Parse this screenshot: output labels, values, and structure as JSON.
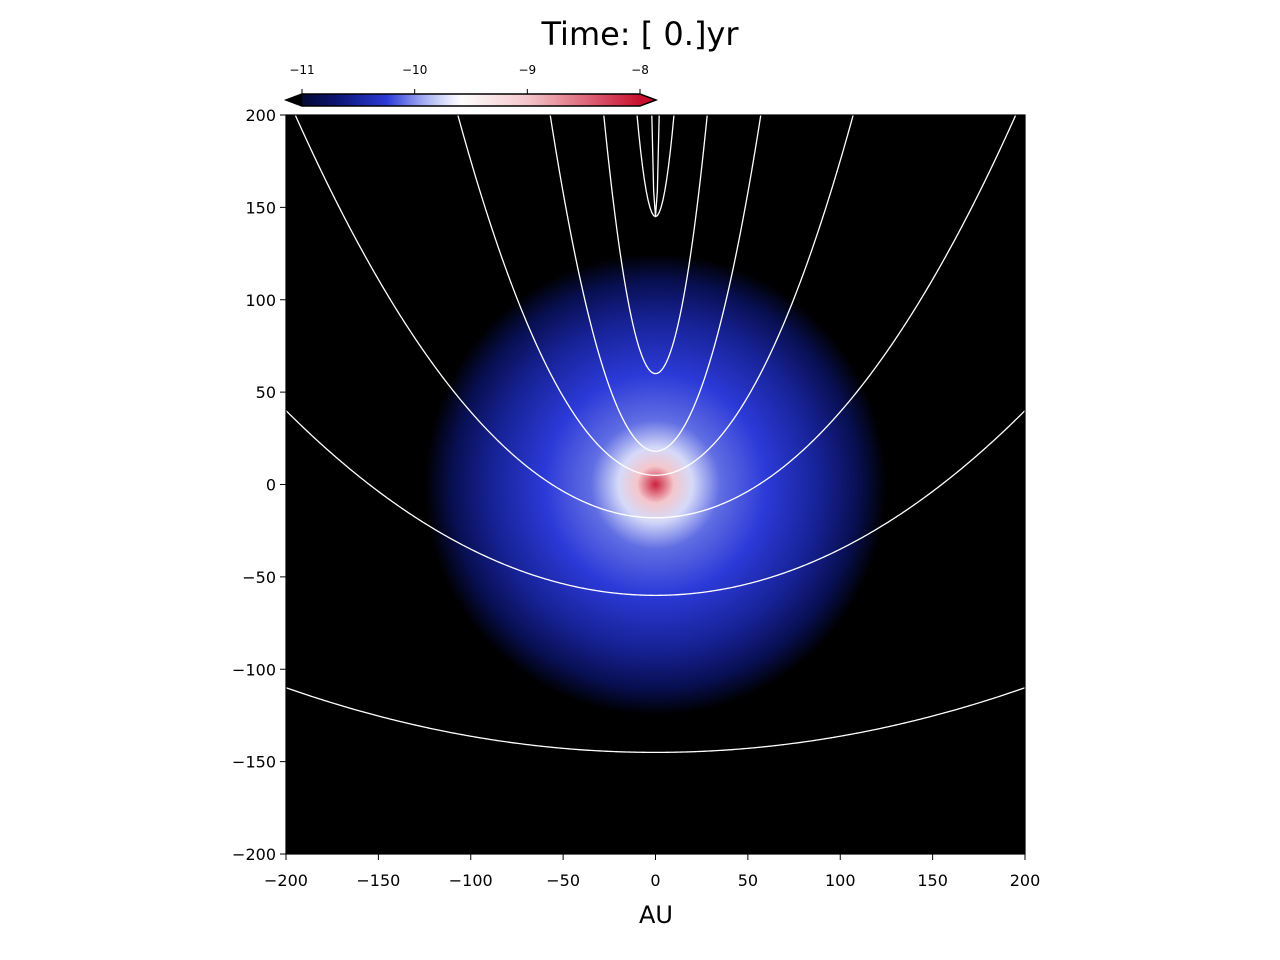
{
  "chart_data": {
    "type": "heatmap",
    "title": "Time: [ 0.]yr",
    "xlabel": "AU",
    "ylabel": "",
    "xlim": [
      -200,
      200
    ],
    "ylim": [
      -200,
      200
    ],
    "x_ticks": [
      -200,
      -150,
      -100,
      -50,
      0,
      50,
      100,
      150,
      200
    ],
    "y_ticks": [
      -200,
      -150,
      -100,
      -50,
      0,
      50,
      100,
      150,
      200
    ],
    "x_tick_labels": [
      "−200",
      "−150",
      "−100",
      "−50",
      "0",
      "50",
      "100",
      "150",
      "200"
    ],
    "y_tick_labels": [
      "−200",
      "−150",
      "−100",
      "−50",
      "0",
      "50",
      "100",
      "150",
      "200"
    ],
    "grid": false,
    "background_color": "#000000",
    "colorbar": {
      "placement": "top-left",
      "orientation": "horizontal",
      "range": [
        -11.25,
        -7.9
      ],
      "ticks": [
        -11,
        -10,
        -9,
        -8
      ],
      "tick_labels": [
        "−11",
        "−10",
        "−9",
        "−8"
      ],
      "extend": "both",
      "colormap_stops": [
        {
          "value": -11.25,
          "color": "#000000"
        },
        {
          "value": -10.7,
          "color": "#0b1570"
        },
        {
          "value": -10.25,
          "color": "#2b3ad8"
        },
        {
          "value": -9.9,
          "color": "#aab4f2"
        },
        {
          "value": -9.6,
          "color": "#ffffff"
        },
        {
          "value": -9.0,
          "color": "#f4c6cb"
        },
        {
          "value": -8.0,
          "color": "#c8102e"
        }
      ]
    },
    "density_field": {
      "description_of_values": "log10 density",
      "center": [
        0,
        0
      ],
      "radial_profile": [
        {
          "r": 0,
          "value": -8.1
        },
        {
          "r": 10,
          "value": -9.0
        },
        {
          "r": 20,
          "value": -9.75
        },
        {
          "r": 35,
          "value": -10.1
        },
        {
          "r": 60,
          "value": -10.25
        },
        {
          "r": 90,
          "value": -10.55
        },
        {
          "r": 110,
          "value": -10.85
        },
        {
          "r": 125,
          "value": -11.25
        }
      ]
    },
    "contour_color": "#ffffff",
    "contours": [
      {
        "type": "parabola",
        "vertex": [
          0,
          -145
        ],
        "through": [
          -200,
          -110
        ]
      },
      {
        "type": "parabola",
        "vertex": [
          0,
          -60
        ],
        "through": [
          -200,
          40
        ]
      },
      {
        "type": "parabola",
        "vertex": [
          0,
          -18
        ],
        "through": [
          -195,
          200
        ]
      },
      {
        "type": "parabola",
        "vertex": [
          0,
          5
        ],
        "through": [
          -107,
          200
        ]
      },
      {
        "type": "parabola",
        "vertex": [
          0,
          18
        ],
        "through": [
          -57,
          200
        ]
      },
      {
        "type": "parabola",
        "vertex": [
          0,
          60
        ],
        "through": [
          -28,
          200
        ]
      },
      {
        "type": "parabola",
        "vertex": [
          0,
          145
        ],
        "through": [
          -10,
          200
        ]
      },
      {
        "type": "parabola",
        "vertex": [
          0,
          145
        ],
        "through": [
          -2,
          200
        ]
      }
    ]
  }
}
